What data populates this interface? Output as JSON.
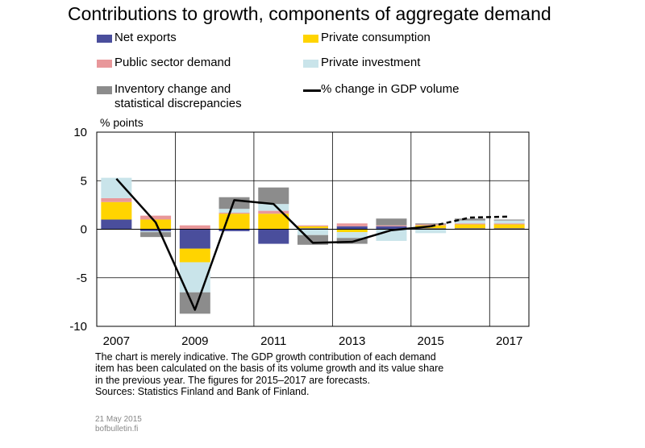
{
  "title": "Contributions to growth, components of aggregate demand",
  "legend": [
    {
      "label": "Net exports",
      "key": "net_exports",
      "type": "box"
    },
    {
      "label": "Private consumption",
      "key": "private_consumption",
      "type": "box"
    },
    {
      "label": "Public sector demand",
      "key": "public_demand",
      "type": "box"
    },
    {
      "label": "Private investment",
      "key": "private_investment",
      "type": "box"
    },
    {
      "label": "Inventory change and",
      "label2": "statistical discrepancies",
      "key": "inventory",
      "type": "box"
    },
    {
      "label": "% change in GDP volume",
      "key": "gdp",
      "type": "line"
    }
  ],
  "colors": {
    "net_exports": "#4a4e9c",
    "private_consumption": "#ffd400",
    "public_demand": "#e8979a",
    "private_investment": "#c9e4ea",
    "inventory": "#8c8c8c",
    "gdp": "#000000"
  },
  "chart_data": {
    "type": "bar",
    "stacked": true,
    "title": "Contributions to growth, components of aggregate demand",
    "ylabel": "% points",
    "ylim": [
      -10,
      10
    ],
    "yticks": [
      10,
      5,
      0,
      -5,
      -10
    ],
    "xtick_labels": [
      "2007",
      "2009",
      "2011",
      "2013",
      "2015",
      "2017"
    ],
    "categories": [
      "2007",
      "2008",
      "2009",
      "2010",
      "2011",
      "2012",
      "2013",
      "2014",
      "2015",
      "2016",
      "2017"
    ],
    "series": [
      {
        "name": "Net exports",
        "key": "net_exports",
        "values": [
          1.0,
          -0.2,
          -2.0,
          -0.2,
          -1.5,
          0.1,
          0.3,
          0.3,
          0.1,
          0.1,
          0.1
        ]
      },
      {
        "name": "Private consumption",
        "key": "private_consumption",
        "values": [
          1.8,
          1.0,
          -1.4,
          1.6,
          1.6,
          0.2,
          -0.3,
          0.0,
          0.3,
          0.4,
          0.4
        ]
      },
      {
        "name": "Public sector demand",
        "key": "public_demand",
        "values": [
          0.4,
          0.4,
          0.4,
          0.1,
          0.3,
          0.1,
          0.3,
          0.1,
          0.1,
          0.1,
          0.1
        ]
      },
      {
        "name": "Private investment",
        "key": "private_investment",
        "values": [
          2.1,
          -0.1,
          -3.1,
          0.4,
          0.7,
          -0.6,
          -0.6,
          -1.2,
          -0.4,
          0.3,
          0.3
        ]
      },
      {
        "name": "Inventory change and statistical discrepancies",
        "key": "inventory",
        "values": [
          0.0,
          -0.5,
          -2.2,
          1.2,
          1.7,
          -1.0,
          -0.6,
          0.7,
          0.1,
          0.2,
          0.1
        ]
      }
    ],
    "line": {
      "name": "% change in GDP volume",
      "values": [
        5.2,
        0.7,
        -8.3,
        3.0,
        2.6,
        -1.4,
        -1.3,
        -0.1,
        0.3,
        1.2,
        1.3
      ],
      "forecast_from_index": 8
    }
  },
  "notes": [
    "The chart is merely indicative. The GDP growth contribution of each demand",
    "item has been calculated on the basis of its volume growth and its value share",
    "in the previous year. The figures for 2015–2017 are forecasts.",
    "Sources: Statistics Finland and Bank of Finland."
  ],
  "footer": [
    "21 May 2015",
    "bofbulletin.fi"
  ]
}
